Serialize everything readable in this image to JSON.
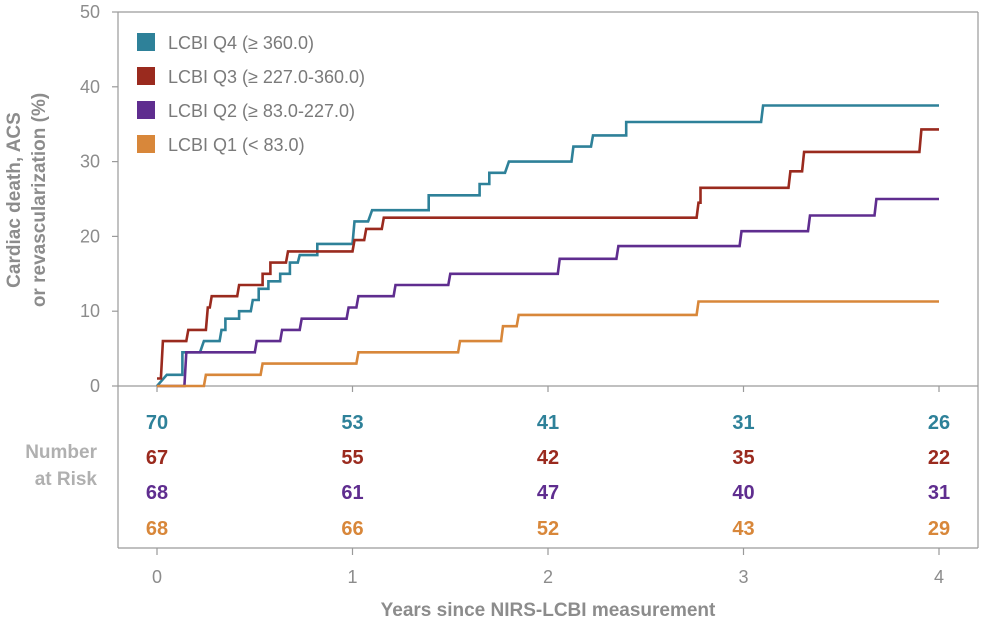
{
  "chart_data": {
    "type": "line",
    "step": true,
    "xlabel": "Years since NIRS-LCBI measurement",
    "ylabel_lines": [
      "Cardiac death, ACS",
      "or revascularization (%)"
    ],
    "xlim": [
      0,
      4
    ],
    "ylim": [
      0,
      50
    ],
    "xticks": [
      "0",
      "1",
      "2",
      "3",
      "4"
    ],
    "yticks": [
      "0",
      "10",
      "20",
      "30",
      "40",
      "50"
    ],
    "grid": false,
    "legend_position": "top-left",
    "series": [
      {
        "name": "LCBI Q4 (≥ 360.0)",
        "color": "#2e8199",
        "points": [
          [
            0,
            0
          ],
          [
            0.05,
            1.5
          ],
          [
            0.13,
            1.5
          ],
          [
            0.13,
            4.5
          ],
          [
            0.22,
            4.5
          ],
          [
            0.24,
            6
          ],
          [
            0.32,
            6
          ],
          [
            0.33,
            7.5
          ],
          [
            0.35,
            7.5
          ],
          [
            0.35,
            9
          ],
          [
            0.42,
            9
          ],
          [
            0.42,
            10
          ],
          [
            0.48,
            10
          ],
          [
            0.49,
            11.5
          ],
          [
            0.52,
            11.5
          ],
          [
            0.52,
            13
          ],
          [
            0.57,
            13
          ],
          [
            0.57,
            14
          ],
          [
            0.63,
            14
          ],
          [
            0.63,
            15
          ],
          [
            0.68,
            15
          ],
          [
            0.68,
            16.5
          ],
          [
            0.72,
            16.5
          ],
          [
            0.73,
            17.5
          ],
          [
            0.82,
            17.5
          ],
          [
            0.82,
            19
          ],
          [
            1.0,
            19
          ],
          [
            1.01,
            22
          ],
          [
            1.08,
            22
          ],
          [
            1.1,
            23.5
          ],
          [
            1.39,
            23.5
          ],
          [
            1.39,
            25.5
          ],
          [
            1.65,
            25.5
          ],
          [
            1.65,
            27
          ],
          [
            1.7,
            27
          ],
          [
            1.7,
            28.5
          ],
          [
            1.78,
            28.5
          ],
          [
            1.8,
            30
          ],
          [
            2.12,
            30
          ],
          [
            2.13,
            32
          ],
          [
            2.22,
            32
          ],
          [
            2.23,
            33.5
          ],
          [
            2.4,
            33.5
          ],
          [
            2.4,
            35.3
          ],
          [
            3.09,
            35.3
          ],
          [
            3.1,
            37.5
          ],
          [
            4.0,
            37.5
          ]
        ]
      },
      {
        "name": "LCBI Q3 (≥ 227.0-360.0)",
        "color": "#9a2a1e",
        "points": [
          [
            0,
            1
          ],
          [
            0.02,
            1
          ],
          [
            0.03,
            6
          ],
          [
            0.15,
            6
          ],
          [
            0.16,
            7.5
          ],
          [
            0.25,
            7.5
          ],
          [
            0.26,
            10.5
          ],
          [
            0.27,
            10.5
          ],
          [
            0.28,
            12
          ],
          [
            0.41,
            12
          ],
          [
            0.42,
            13.5
          ],
          [
            0.54,
            13.5
          ],
          [
            0.54,
            15
          ],
          [
            0.58,
            15
          ],
          [
            0.58,
            16.5
          ],
          [
            0.66,
            16.5
          ],
          [
            0.67,
            18
          ],
          [
            1.0,
            18
          ],
          [
            1.01,
            19.5
          ],
          [
            1.06,
            19.5
          ],
          [
            1.07,
            21
          ],
          [
            1.15,
            21
          ],
          [
            1.16,
            22.5
          ],
          [
            2.76,
            22.5
          ],
          [
            2.77,
            24.5
          ],
          [
            2.78,
            24.5
          ],
          [
            2.78,
            26.5
          ],
          [
            3.23,
            26.5
          ],
          [
            3.24,
            28.7
          ],
          [
            3.3,
            28.7
          ],
          [
            3.31,
            31.3
          ],
          [
            3.9,
            31.3
          ],
          [
            3.91,
            34.3
          ],
          [
            4.0,
            34.3
          ]
        ]
      },
      {
        "name": "LCBI Q2 (≥ 83.0-227.0)",
        "color": "#5f2d8f",
        "points": [
          [
            0,
            0
          ],
          [
            0.14,
            0
          ],
          [
            0.15,
            4.5
          ],
          [
            0.5,
            4.5
          ],
          [
            0.51,
            6
          ],
          [
            0.63,
            6
          ],
          [
            0.64,
            7.5
          ],
          [
            0.73,
            7.5
          ],
          [
            0.74,
            9
          ],
          [
            0.97,
            9
          ],
          [
            0.98,
            10.5
          ],
          [
            1.02,
            10.5
          ],
          [
            1.03,
            12
          ],
          [
            1.21,
            12
          ],
          [
            1.22,
            13.5
          ],
          [
            1.49,
            13.5
          ],
          [
            1.5,
            15
          ],
          [
            2.05,
            15
          ],
          [
            2.06,
            17
          ],
          [
            2.35,
            17
          ],
          [
            2.36,
            18.7
          ],
          [
            2.98,
            18.7
          ],
          [
            2.99,
            20.7
          ],
          [
            3.33,
            20.7
          ],
          [
            3.34,
            22.8
          ],
          [
            3.67,
            22.8
          ],
          [
            3.68,
            25
          ],
          [
            4.0,
            25
          ]
        ]
      },
      {
        "name": "LCBI Q1 (< 83.0)",
        "color": "#d8873a",
        "points": [
          [
            0,
            0
          ],
          [
            0.24,
            0
          ],
          [
            0.25,
            1.5
          ],
          [
            0.53,
            1.5
          ],
          [
            0.54,
            3
          ],
          [
            1.02,
            3
          ],
          [
            1.03,
            4.5
          ],
          [
            1.54,
            4.5
          ],
          [
            1.55,
            6
          ],
          [
            1.76,
            6
          ],
          [
            1.77,
            8
          ],
          [
            1.84,
            8
          ],
          [
            1.85,
            9.5
          ],
          [
            2.76,
            9.5
          ],
          [
            2.77,
            11.3
          ],
          [
            4.0,
            11.3
          ]
        ]
      }
    ]
  },
  "risk_table": {
    "label_line1": "Number",
    "label_line2": "at Risk",
    "rows": [
      {
        "color": "#2e8199",
        "values": [
          "70",
          "53",
          "41",
          "31",
          "26"
        ]
      },
      {
        "color": "#9a2a1e",
        "values": [
          "67",
          "55",
          "42",
          "35",
          "22"
        ]
      },
      {
        "color": "#5f2d8f",
        "values": [
          "68",
          "61",
          "47",
          "40",
          "31"
        ]
      },
      {
        "color": "#d8873a",
        "values": [
          "68",
          "66",
          "52",
          "43",
          "29"
        ]
      }
    ]
  }
}
